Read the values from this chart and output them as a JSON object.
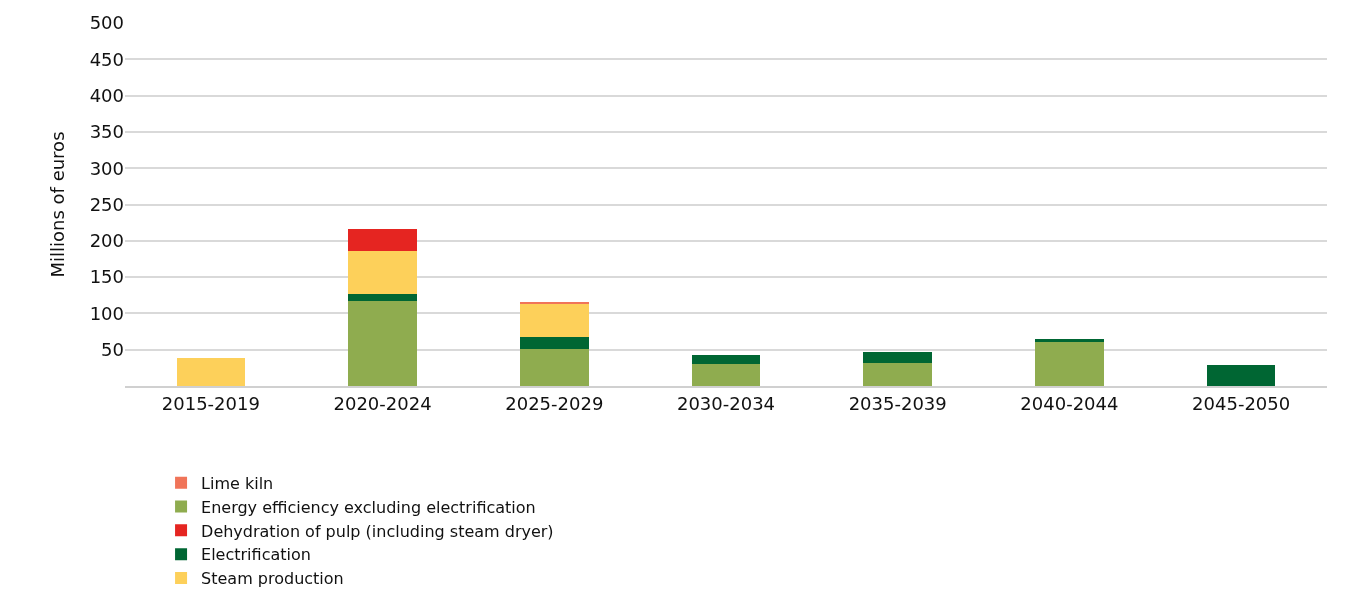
{
  "chart_data": {
    "type": "bar",
    "stacked": true,
    "ylabel": "Millions of euros",
    "categories": [
      "2015-2019",
      "2020-2024",
      "2025-2029",
      "2030-2034",
      "2035-2039",
      "2040-2044",
      "2045-2050"
    ],
    "series": [
      {
        "name": "Energy efficiency excluding electrification",
        "color": "#8fac4f",
        "values": [
          0,
          117,
          51,
          30,
          32,
          60,
          0
        ]
      },
      {
        "name": "Electrification",
        "color": "#006633",
        "values": [
          0,
          10,
          16,
          13,
          15,
          5,
          29
        ]
      },
      {
        "name": "Steam production",
        "color": "#fdd05a",
        "values": [
          38,
          59,
          47,
          0,
          0,
          0,
          0
        ]
      },
      {
        "name": "Dehydration of pulp (including steam dryer)",
        "color": "#e52521",
        "values": [
          0,
          30,
          0,
          0,
          0,
          0,
          0
        ]
      },
      {
        "name": "Lime kiln",
        "color": "#f07459",
        "values": [
          0,
          0,
          2,
          0,
          0,
          0,
          0
        ]
      }
    ],
    "ylim": [
      0,
      500
    ],
    "yticks": [
      50,
      100,
      150,
      200,
      250,
      300,
      350,
      400,
      450,
      500
    ],
    "grid": "y",
    "legend": "bottom"
  }
}
